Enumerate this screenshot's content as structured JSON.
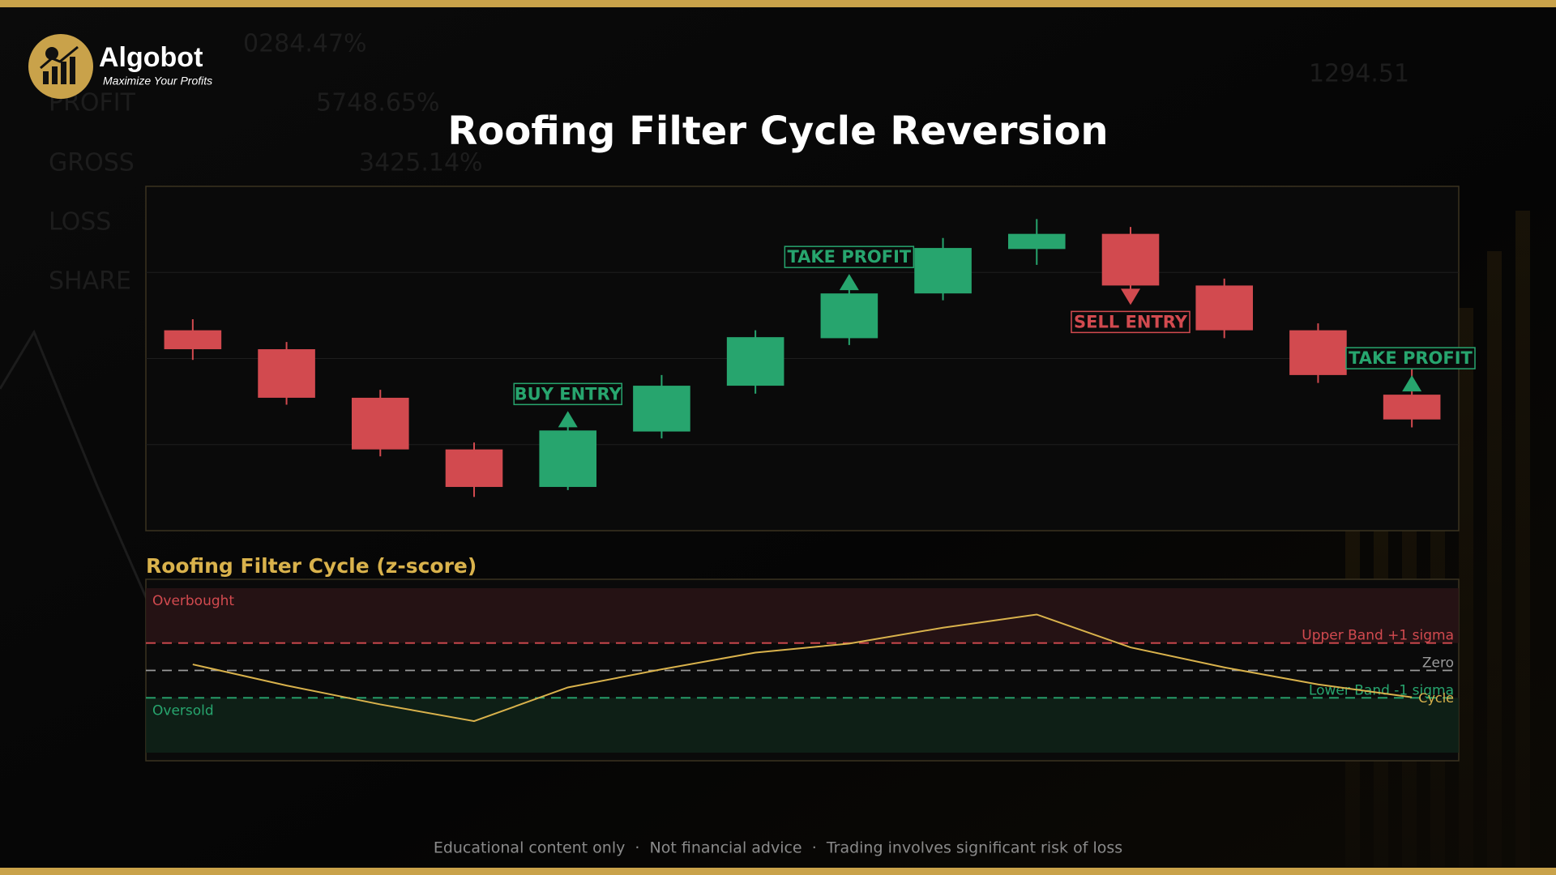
{
  "header": {
    "brand": "Algobot",
    "tagline": "Maximize Your Profits"
  },
  "backdrop": [
    "0284.47%",
    "PROFIT",
    "5748.65%",
    "GROSS",
    "3425.14%",
    "LOSS",
    "SHARE",
    "1294.51"
  ],
  "chart_data": [
    {
      "type": "candlestick",
      "title": "Roofing Filter Cycle Reversion",
      "ylim": [
        0,
        100
      ],
      "yticks": [
        25,
        50,
        75
      ],
      "grid": true,
      "up_color": "#27a56e",
      "down_color": "#d24a4f",
      "open": [
        58.2,
        52.7,
        38.6,
        23.6,
        12.7,
        28.8,
        42.1,
        55.9,
        68.9,
        81.8,
        86.2,
        71.2,
        58.2,
        39.5
      ],
      "high": [
        61.4,
        54.8,
        40.9,
        25.6,
        30.3,
        45.2,
        58.2,
        70.6,
        85.0,
        90.5,
        88.2,
        73.2,
        60.2,
        47.3
      ],
      "low": [
        49.6,
        36.6,
        21.6,
        9.8,
        11.8,
        26.8,
        39.8,
        53.9,
        66.9,
        77.2,
        69.2,
        55.9,
        42.9,
        30.0
      ],
      "close": [
        52.7,
        38.6,
        23.6,
        12.7,
        29.1,
        42.1,
        56.2,
        68.9,
        82.1,
        86.2,
        71.2,
        58.2,
        45.2,
        32.3
      ],
      "annotations": [
        {
          "index": 4,
          "text": "BUY ENTRY",
          "side": "above",
          "color": "#27a56e"
        },
        {
          "index": 7,
          "text": "TAKE PROFIT",
          "side": "above",
          "color": "#27a56e"
        },
        {
          "index": 10,
          "text": "SELL ENTRY",
          "side": "below",
          "color": "#d24a4f"
        },
        {
          "index": 13,
          "text": "TAKE PROFIT",
          "side": "above",
          "color": "#27a56e"
        }
      ]
    },
    {
      "type": "line",
      "title": "Roofing Filter Cycle (z-score)",
      "ylim": [
        -3,
        3
      ],
      "zone_labels": {
        "upper": "Overbought",
        "lower": "Oversold"
      },
      "bands": [
        {
          "name": "Upper Band +1 sigma",
          "value": 1,
          "color": "#d24a4f"
        },
        {
          "name": "Zero",
          "value": 0,
          "color": "#9a9a9a"
        },
        {
          "name": "Lower Band -1 sigma",
          "value": -1,
          "color": "#27a56e"
        }
      ],
      "series": [
        {
          "name": "Cycle",
          "color": "#d9b24c",
          "values": [
            0.22,
            -0.55,
            -1.24,
            -1.85,
            -0.62,
            0.04,
            0.65,
            0.98,
            1.56,
            2.04,
            0.84,
            0.11,
            -0.51,
            -0.98
          ]
        }
      ]
    }
  ],
  "footer": "Educational content only  ·  Not financial advice  ·  Trading involves significant risk of loss"
}
